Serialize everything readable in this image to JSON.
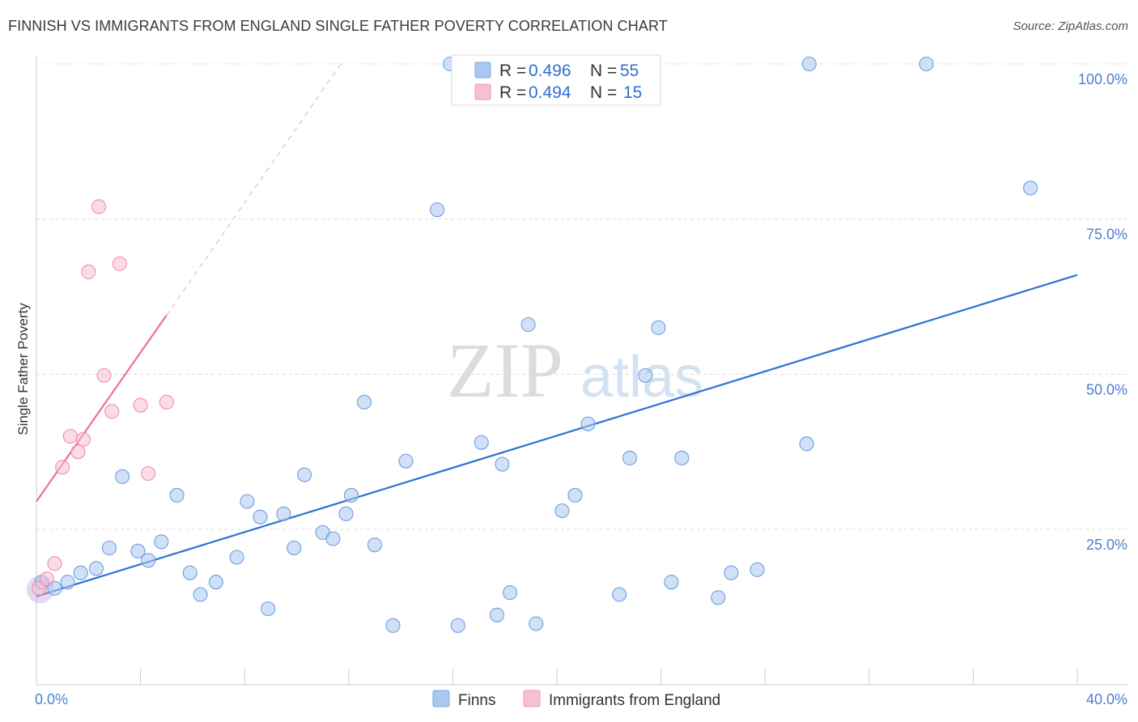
{
  "title": "FINNISH VS IMMIGRANTS FROM ENGLAND SINGLE FATHER POVERTY CORRELATION CHART",
  "source": "Source: ZipAtlas.com",
  "watermark": {
    "zip": "ZIP",
    "atlas": "atlas"
  },
  "chart_data": {
    "type": "scatter",
    "xlabel": "",
    "ylabel": "Single Father Poverty",
    "xlim": [
      0,
      40
    ],
    "ylim": [
      0,
      102
    ],
    "x_tick_labels": [
      {
        "value": 0,
        "label": "0.0%"
      },
      {
        "value": 40,
        "label": "40.0%"
      }
    ],
    "y_tick_labels": [
      {
        "value": 25,
        "label": "25.0%"
      },
      {
        "value": 50,
        "label": "50.0%"
      },
      {
        "value": 75,
        "label": "75.0%"
      },
      {
        "value": 100,
        "label": "100.0%"
      }
    ],
    "grid": "horizontal-dashed",
    "legend_top": [
      {
        "r_key": "R = ",
        "r_value": "0.496",
        "n_key": "N = ",
        "n_value": "55",
        "color": "#a9c8f0",
        "stroke": "#7aaae6"
      },
      {
        "r_key": "R = ",
        "r_value": "0.494",
        "n_key": "N = ",
        "n_value": "15",
        "color": "#f8bfd2",
        "stroke": "#f095b5"
      }
    ],
    "series": [
      {
        "name": "Finns",
        "color": "#a9c8f0",
        "stroke": "#6f9fe0",
        "trend_color": "#2f72d0",
        "trend": {
          "x1": 0,
          "y1": 14.2,
          "x2": 40,
          "y2": 66
        },
        "points": [
          [
            0.2,
            16.5
          ],
          [
            0.7,
            15.5
          ],
          [
            1.2,
            16.5
          ],
          [
            1.7,
            18.0
          ],
          [
            2.3,
            18.7
          ],
          [
            2.8,
            22.0
          ],
          [
            3.3,
            33.5
          ],
          [
            3.9,
            21.5
          ],
          [
            4.3,
            20.0
          ],
          [
            4.8,
            23.0
          ],
          [
            5.4,
            30.5
          ],
          [
            5.9,
            18.0
          ],
          [
            6.3,
            14.5
          ],
          [
            6.9,
            16.5
          ],
          [
            7.7,
            20.5
          ],
          [
            8.1,
            29.5
          ],
          [
            8.6,
            27.0
          ],
          [
            8.9,
            12.2
          ],
          [
            9.5,
            27.5
          ],
          [
            9.9,
            22.0
          ],
          [
            10.3,
            33.8
          ],
          [
            11.0,
            24.5
          ],
          [
            11.4,
            23.5
          ],
          [
            11.9,
            27.5
          ],
          [
            12.1,
            30.5
          ],
          [
            12.6,
            45.5
          ],
          [
            13.0,
            22.5
          ],
          [
            13.7,
            9.5
          ],
          [
            14.2,
            36.0
          ],
          [
            15.4,
            76.5
          ],
          [
            15.9,
            100.0
          ],
          [
            16.2,
            9.5
          ],
          [
            17.1,
            39.0
          ],
          [
            17.7,
            11.2
          ],
          [
            17.9,
            35.5
          ],
          [
            18.2,
            14.8
          ],
          [
            18.9,
            58.0
          ],
          [
            19.2,
            9.8
          ],
          [
            20.2,
            28.0
          ],
          [
            20.7,
            30.5
          ],
          [
            21.2,
            42.0
          ],
          [
            21.8,
            100.0
          ],
          [
            22.4,
            14.5
          ],
          [
            22.8,
            36.5
          ],
          [
            23.4,
            49.8
          ],
          [
            23.9,
            57.5
          ],
          [
            24.4,
            16.5
          ],
          [
            24.8,
            36.5
          ],
          [
            26.2,
            14.0
          ],
          [
            26.7,
            18.0
          ],
          [
            27.7,
            18.5
          ],
          [
            29.6,
            38.8
          ],
          [
            29.7,
            100.0
          ],
          [
            34.2,
            100.0
          ],
          [
            38.2,
            80.0
          ]
        ]
      },
      {
        "name": "Immigrants from England",
        "color": "#f8bfd2",
        "stroke": "#ee8fb0",
        "trend_color": "#e8709a",
        "trend": {
          "x1": 0,
          "y1": 29.5,
          "x2": 5.0,
          "y2": 59.5
        },
        "trend_ext": {
          "x1": 5.0,
          "y1": 59.5,
          "x2": 11.7,
          "y2": 100
        },
        "points": [
          [
            0.1,
            15.5
          ],
          [
            0.4,
            17.0
          ],
          [
            0.7,
            19.5
          ],
          [
            1.0,
            35.0
          ],
          [
            1.3,
            40.0
          ],
          [
            1.6,
            37.5
          ],
          [
            1.8,
            39.5
          ],
          [
            2.0,
            66.5
          ],
          [
            2.4,
            77.0
          ],
          [
            2.6,
            49.8
          ],
          [
            2.9,
            44.0
          ],
          [
            3.2,
            67.8
          ],
          [
            4.0,
            45.0
          ],
          [
            4.3,
            34.0
          ],
          [
            5.0,
            45.5
          ]
        ]
      }
    ]
  }
}
